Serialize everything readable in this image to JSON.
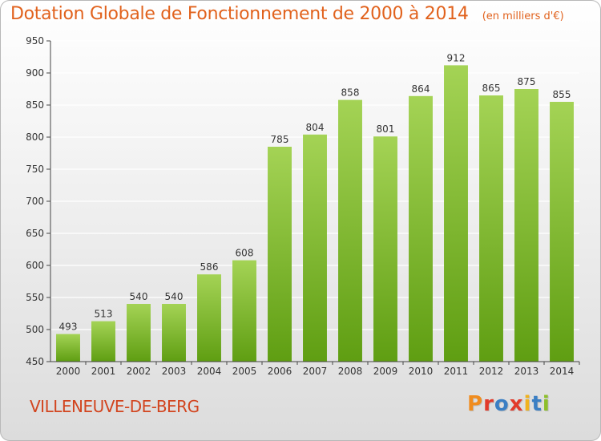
{
  "header": {
    "title": "Dotation Globale de Fonctionnement de 2000 à 2014",
    "unit": "(en milliers d'€)"
  },
  "footer": {
    "commune": "VILLENEUVE-DE-BERG",
    "brand_letters": [
      "P",
      "r",
      "o",
      "x",
      "i",
      "t",
      "i"
    ],
    "brand_colors": [
      "#f08c1e",
      "#e23a2a",
      "#3b7fc4",
      "#e23a2a",
      "#f0b21e",
      "#3b7fc4",
      "#8dbf2b"
    ]
  },
  "colors": {
    "bar_top": "#a4d355",
    "bar_bottom": "#5f9e12",
    "axis": "#444444",
    "grid": "#ffffff"
  },
  "chart_data": {
    "type": "bar",
    "title": "Dotation Globale de Fonctionnement de 2000 à 2014",
    "ylabel": "",
    "xlabel": "",
    "ylim": [
      450,
      950
    ],
    "yticks": [
      450,
      500,
      550,
      600,
      650,
      700,
      750,
      800,
      850,
      900,
      950
    ],
    "grid": true,
    "categories": [
      "2000",
      "2001",
      "2002",
      "2003",
      "2004",
      "2005",
      "2006",
      "2007",
      "2008",
      "2009",
      "2010",
      "2011",
      "2012",
      "2013",
      "2014"
    ],
    "values": [
      493,
      513,
      540,
      540,
      586,
      608,
      785,
      804,
      858,
      801,
      864,
      912,
      865,
      875,
      855
    ]
  }
}
